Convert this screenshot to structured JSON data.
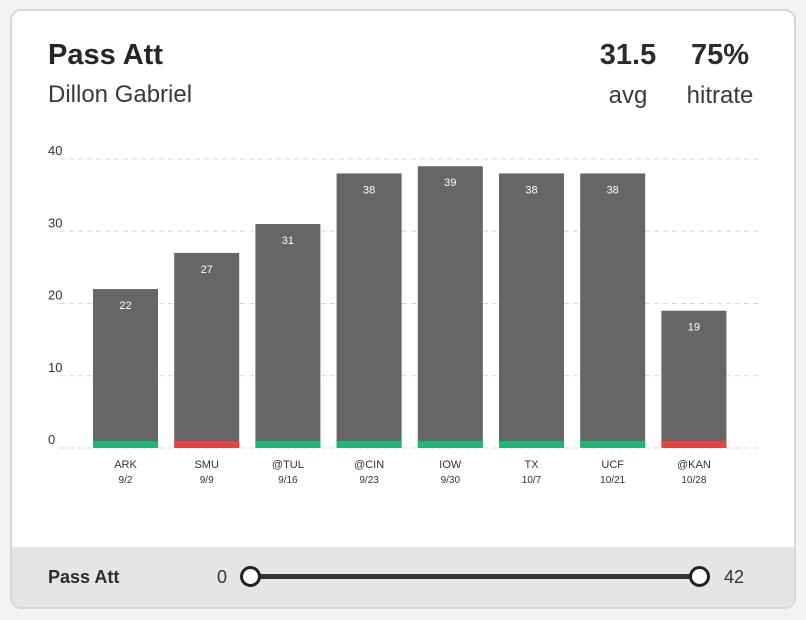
{
  "header": {
    "title": "Pass Att",
    "subtitle": "Dillon Gabriel",
    "stats": [
      {
        "value": "31.5",
        "label": "avg"
      },
      {
        "value": "75%",
        "label": "hitrate"
      }
    ]
  },
  "chart_data": {
    "type": "bar",
    "categories": [
      "ARK",
      "SMU",
      "@TUL",
      "@CIN",
      "IOW",
      "TX",
      "UCF",
      "@KAN"
    ],
    "dates": [
      "9/2",
      "9/9",
      "9/16",
      "9/23",
      "9/30",
      "10/7",
      "10/21",
      "10/28"
    ],
    "values": [
      22,
      27,
      31,
      38,
      39,
      38,
      38,
      19
    ],
    "hit": [
      true,
      false,
      true,
      true,
      true,
      true,
      true,
      false
    ],
    "ylim": [
      0,
      40
    ],
    "yticks": [
      0,
      10,
      20,
      30,
      40
    ],
    "grid": true,
    "colors": {
      "bar": "#666666",
      "hit": "#22b573",
      "miss": "#e04646",
      "grid": "#d9d9d9"
    }
  },
  "footer": {
    "label": "Pass Att",
    "range_min": "0",
    "range_max": "42",
    "slider_min_value": 0,
    "slider_max_value": 42
  }
}
